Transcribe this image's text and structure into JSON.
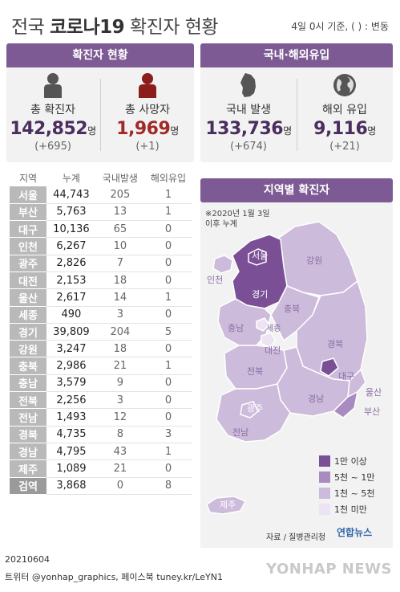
{
  "header": {
    "title_prefix": "전국",
    "title_bold": "코로나19",
    "title_suffix": "확진자 현황",
    "basis": "4일  0시 기준, ( ) : 변동"
  },
  "panels": {
    "confirmed_title": "확진자 현황",
    "inflow_title": "국내·해외유입"
  },
  "stats": [
    {
      "label": "총 확진자",
      "value": "142,852",
      "unit": "명",
      "change": "(+695)",
      "icon": "person-icon"
    },
    {
      "label": "총 사망자",
      "value": "1,969",
      "unit": "명",
      "change": "(+1)",
      "icon": "person-icon"
    },
    {
      "label": "국내 발생",
      "value": "133,736",
      "unit": "명",
      "change": "(+674)",
      "icon": "korea-map-icon"
    },
    {
      "label": "해외 유입",
      "value": "9,116",
      "unit": "명",
      "change": "(+21)",
      "icon": "globe-icon"
    }
  ],
  "table": {
    "headers": [
      "지역",
      "누계",
      "국내발생",
      "해외유입"
    ],
    "rows": [
      {
        "region": "서울",
        "total": "44,743",
        "domestic": "205",
        "overseas": "1"
      },
      {
        "region": "부산",
        "total": "5,763",
        "domestic": "13",
        "overseas": "1"
      },
      {
        "region": "대구",
        "total": "10,136",
        "domestic": "65",
        "overseas": "0"
      },
      {
        "region": "인천",
        "total": "6,267",
        "domestic": "10",
        "overseas": "0"
      },
      {
        "region": "광주",
        "total": "2,826",
        "domestic": "7",
        "overseas": "0"
      },
      {
        "region": "대전",
        "total": "2,153",
        "domestic": "18",
        "overseas": "0"
      },
      {
        "region": "울산",
        "total": "2,617",
        "domestic": "14",
        "overseas": "1"
      },
      {
        "region": "세종",
        "total": "490",
        "domestic": "3",
        "overseas": "0"
      },
      {
        "region": "경기",
        "total": "39,809",
        "domestic": "204",
        "overseas": "5"
      },
      {
        "region": "강원",
        "total": "3,247",
        "domestic": "18",
        "overseas": "0"
      },
      {
        "region": "충북",
        "total": "2,986",
        "domestic": "21",
        "overseas": "1"
      },
      {
        "region": "충남",
        "total": "3,579",
        "domestic": "9",
        "overseas": "0"
      },
      {
        "region": "전북",
        "total": "2,256",
        "domestic": "3",
        "overseas": "0"
      },
      {
        "region": "전남",
        "total": "1,493",
        "domestic": "12",
        "overseas": "0"
      },
      {
        "region": "경북",
        "total": "4,735",
        "domestic": "8",
        "overseas": "3"
      },
      {
        "region": "경남",
        "total": "4,795",
        "domestic": "43",
        "overseas": "1"
      },
      {
        "region": "제주",
        "total": "1,089",
        "domestic": "21",
        "overseas": "0"
      },
      {
        "region": "검역",
        "total": "3,868",
        "domestic": "0",
        "overseas": "8"
      }
    ]
  },
  "map": {
    "title": "지역별 확진자",
    "note_line1": "※2020년 1월 3일",
    "note_line2": "이후 누계",
    "labels": {
      "seoul": "서울",
      "incheon": "인천",
      "gyeonggi": "경기",
      "gangwon": "강원",
      "chungbuk": "충북",
      "chungnam": "충남",
      "sejong": "세종",
      "daejeon": "대전",
      "gyeongbuk": "경북",
      "daegu": "대구",
      "jeonbuk": "전북",
      "ulsan": "울산",
      "gyeongnam": "경남",
      "busan": "부산",
      "gwangju": "광주",
      "jeonnam": "전남",
      "jeju": "제주"
    },
    "legend": [
      {
        "label": "1만 이상",
        "color": "#7b4f95"
      },
      {
        "label": "5천 ~ 1만",
        "color": "#a98bbf"
      },
      {
        "label": "1천 ~ 5천",
        "color": "#cdbbdb"
      },
      {
        "label": "1천 미만",
        "color": "#ece4f2"
      }
    ],
    "source": "자료 / 질병관리청",
    "brand": "연합뉴스"
  },
  "footer": {
    "date": "20210604",
    "social": "트위터 @yonhap_graphics, 페이스북 tuney.kr/LeYN1",
    "watermark": "YONHAP NEWS"
  },
  "colors": {
    "purple": "#7d5a94",
    "death_red": "#a32929",
    "number_purple": "#4a2f5e"
  }
}
